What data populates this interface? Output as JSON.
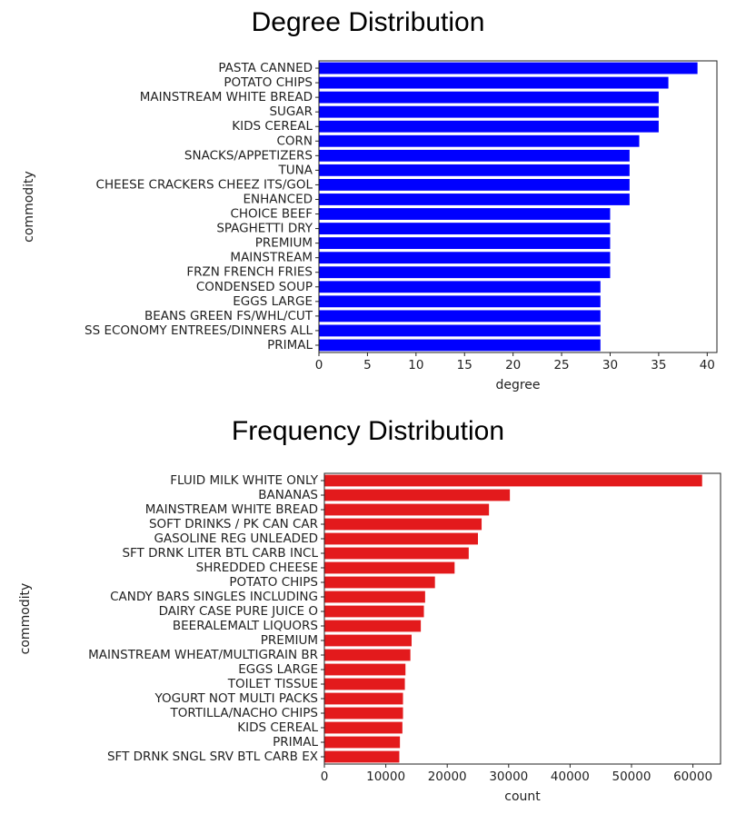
{
  "chart_data": [
    {
      "type": "bar",
      "orientation": "horizontal",
      "title": "Degree Distribution",
      "xlabel": "degree",
      "ylabel": "commodity",
      "xlim": [
        0,
        41
      ],
      "xticks": [
        0,
        5,
        10,
        15,
        20,
        25,
        30,
        35,
        40
      ],
      "bar_color": "#0000ff",
      "categories": [
        "PASTA CANNED",
        "POTATO CHIPS",
        "MAINSTREAM WHITE BREAD",
        "SUGAR",
        "KIDS CEREAL",
        "CORN",
        "SNACKS/APPETIZERS",
        "TUNA",
        "CHEESE CRACKERS CHEEZ ITS/GOL",
        "ENHANCED",
        "CHOICE BEEF",
        "SPAGHETTI DRY",
        "PREMIUM",
        "MAINSTREAM",
        "FRZN FRENCH FRIES",
        "CONDENSED SOUP",
        "EGGS LARGE",
        "BEANS GREEN FS/WHL/CUT",
        "SS ECONOMY ENTREES/DINNERS ALL",
        "PRIMAL"
      ],
      "values": [
        39,
        36,
        35,
        35,
        35,
        33,
        32,
        32,
        32,
        32,
        30,
        30,
        30,
        30,
        30,
        29,
        29,
        29,
        29,
        29
      ]
    },
    {
      "type": "bar",
      "orientation": "horizontal",
      "title": "Frequency Distribution",
      "xlabel": "count",
      "ylabel": "commodity",
      "xlim": [
        0,
        64500
      ],
      "xticks": [
        0,
        10000,
        20000,
        30000,
        40000,
        50000,
        60000
      ],
      "bar_color": "#e31a1c",
      "categories": [
        "FLUID MILK WHITE ONLY",
        "BANANAS",
        "MAINSTREAM WHITE BREAD",
        "SOFT DRINKS / PK CAN CAR",
        "GASOLINE REG UNLEADED",
        "SFT DRNK LITER BTL CARB INCL",
        "SHREDDED CHEESE",
        "POTATO CHIPS",
        "CANDY BARS SINGLES INCLUDING",
        "DAIRY CASE PURE JUICE O",
        "BEERALEMALT LIQUORS",
        "PREMIUM",
        "MAINSTREAM WHEAT/MULTIGRAIN BR",
        "EGGS LARGE",
        "TOILET TISSUE",
        "YOGURT NOT MULTI PACKS",
        "TORTILLA/NACHO CHIPS",
        "KIDS CEREAL",
        "PRIMAL",
        "SFT DRNK SNGL SRV BTL CARB EX"
      ],
      "values": [
        61500,
        30200,
        26800,
        25600,
        25000,
        23500,
        21200,
        18000,
        16400,
        16200,
        15700,
        14200,
        14000,
        13200,
        13100,
        12800,
        12800,
        12700,
        12300,
        12200
      ]
    }
  ]
}
